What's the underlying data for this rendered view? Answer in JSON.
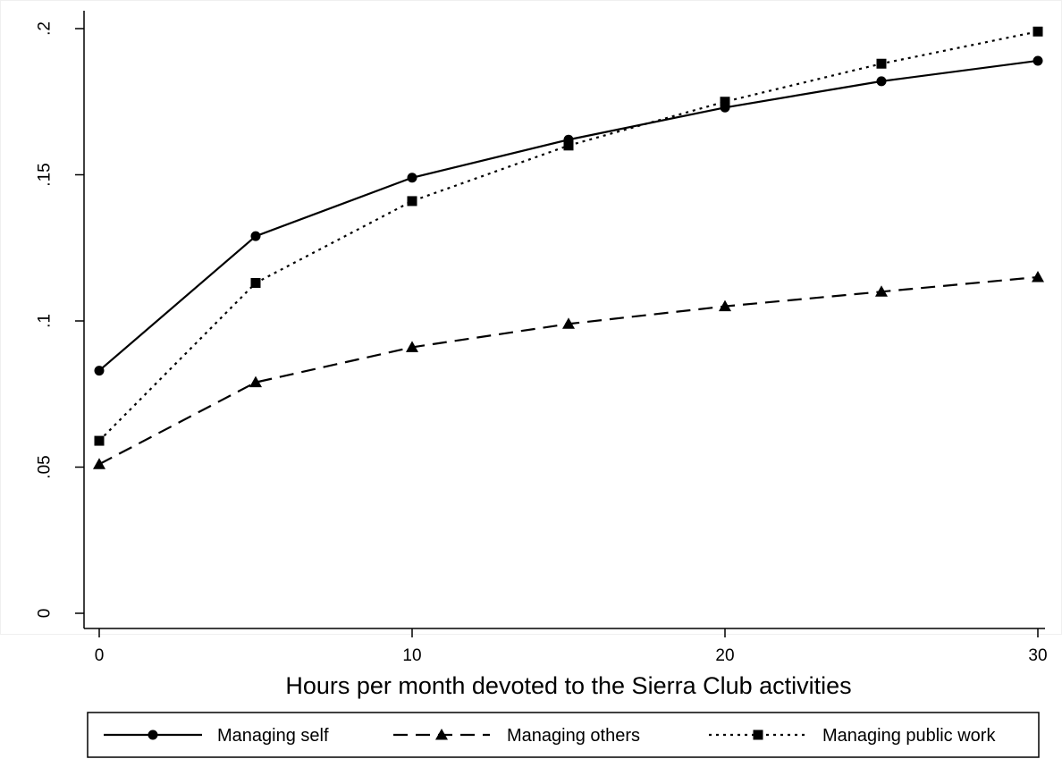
{
  "chart_data": {
    "type": "line",
    "title": "",
    "xlabel": "Hours per month devoted to the Sierra Club activities",
    "ylabel": "",
    "x": [
      0,
      5,
      10,
      15,
      20,
      25,
      30
    ],
    "xlim": [
      0,
      30
    ],
    "ylim": [
      0,
      0.2
    ],
    "x_ticks": [
      0,
      10,
      20,
      30
    ],
    "x_tick_labels": [
      "0",
      "10",
      "20",
      "30"
    ],
    "y_ticks": [
      0,
      0.05,
      0.1,
      0.15,
      0.2
    ],
    "y_tick_labels": [
      "0",
      ".05",
      ".1",
      ".15",
      ".2"
    ],
    "grid": false,
    "legend_position": "bottom",
    "series": [
      {
        "name": "Managing self",
        "marker": "circle",
        "dash": "solid",
        "values": [
          0.083,
          0.129,
          0.149,
          0.162,
          0.173,
          0.182,
          0.189
        ]
      },
      {
        "name": "Managing others",
        "marker": "triangle",
        "dash": "dashed",
        "values": [
          0.051,
          0.079,
          0.091,
          0.099,
          0.105,
          0.11,
          0.115
        ]
      },
      {
        "name": "Managing public work",
        "marker": "square",
        "dash": "dotted",
        "values": [
          0.059,
          0.113,
          0.141,
          0.16,
          0.175,
          0.188,
          0.199
        ]
      }
    ]
  }
}
